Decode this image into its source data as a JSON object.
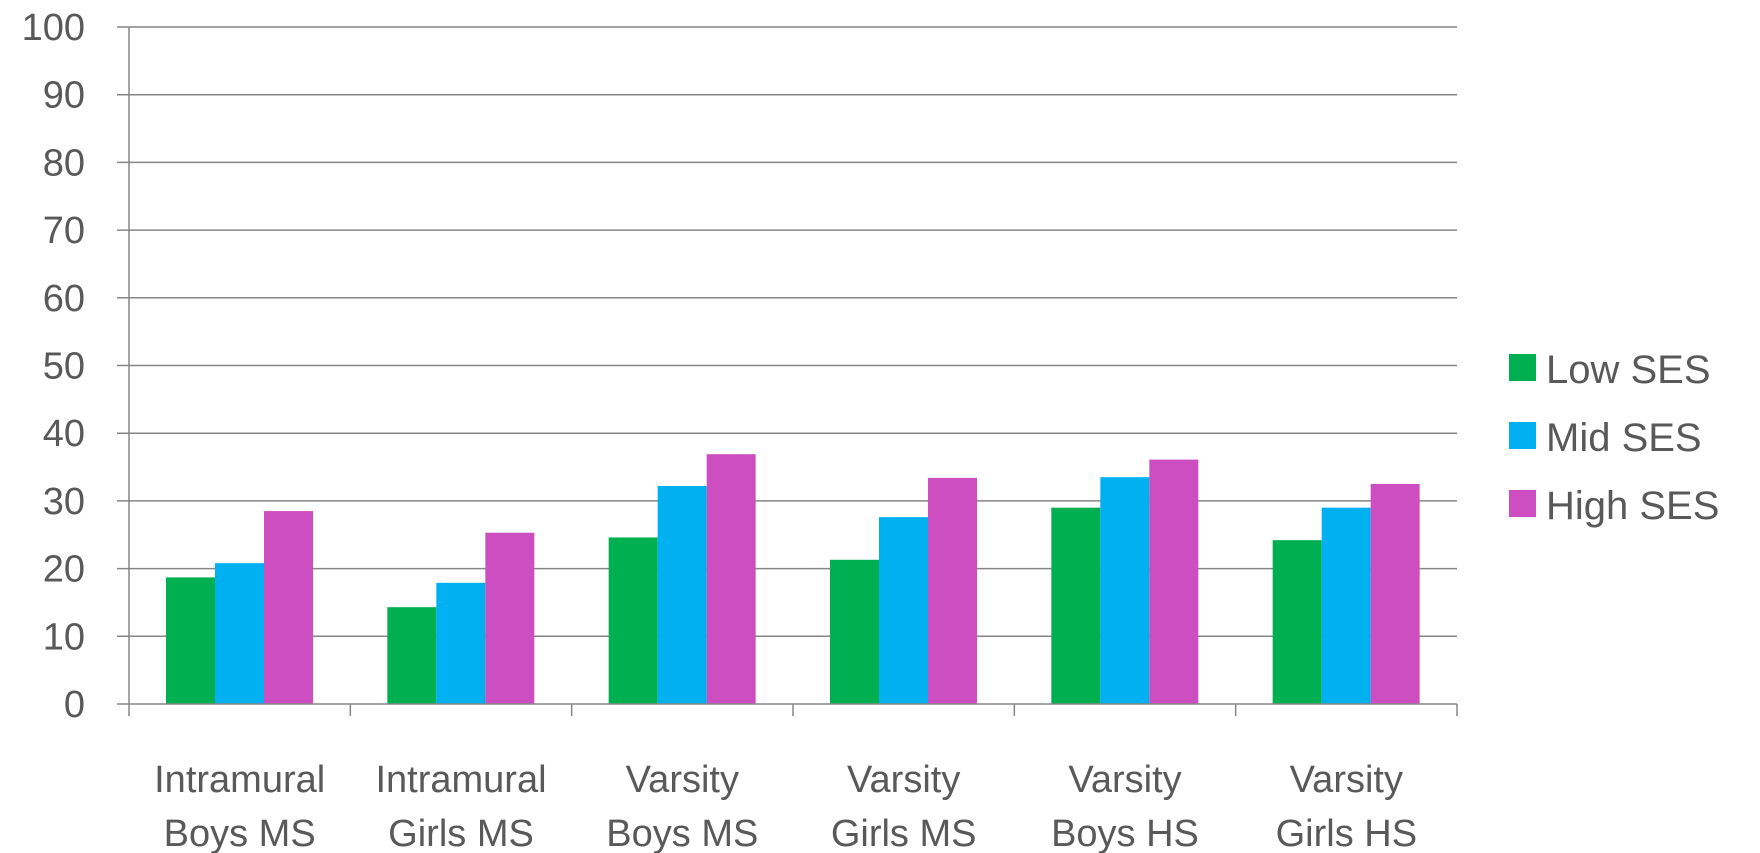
{
  "chart_data": {
    "type": "bar",
    "categories": [
      [
        "Intramural",
        "Boys MS"
      ],
      [
        "Intramural",
        "Girls MS"
      ],
      [
        "Varsity",
        "Boys MS"
      ],
      [
        "Varsity",
        "Girls MS"
      ],
      [
        "Varsity",
        "Boys HS"
      ],
      [
        "Varsity",
        "Girls HS"
      ]
    ],
    "series": [
      {
        "name": "Low SES",
        "color": "#00b050",
        "values": [
          18.7,
          14.3,
          24.6,
          21.3,
          29.0,
          24.2
        ]
      },
      {
        "name": "Mid SES",
        "color": "#00b0f0",
        "values": [
          20.8,
          17.9,
          32.2,
          27.6,
          33.5,
          29.0
        ]
      },
      {
        "name": "High SES",
        "color": "#cc4ec0",
        "values": [
          28.5,
          25.3,
          36.9,
          33.4,
          36.1,
          32.5
        ]
      }
    ],
    "y_ticks": [
      "0",
      "10",
      "20",
      "30",
      "40",
      "50",
      "60",
      "70",
      "80",
      "90",
      "100"
    ],
    "ylim": [
      0,
      100
    ],
    "grid": true,
    "legend_position": "right",
    "title": "",
    "xlabel": "",
    "ylabel": ""
  }
}
